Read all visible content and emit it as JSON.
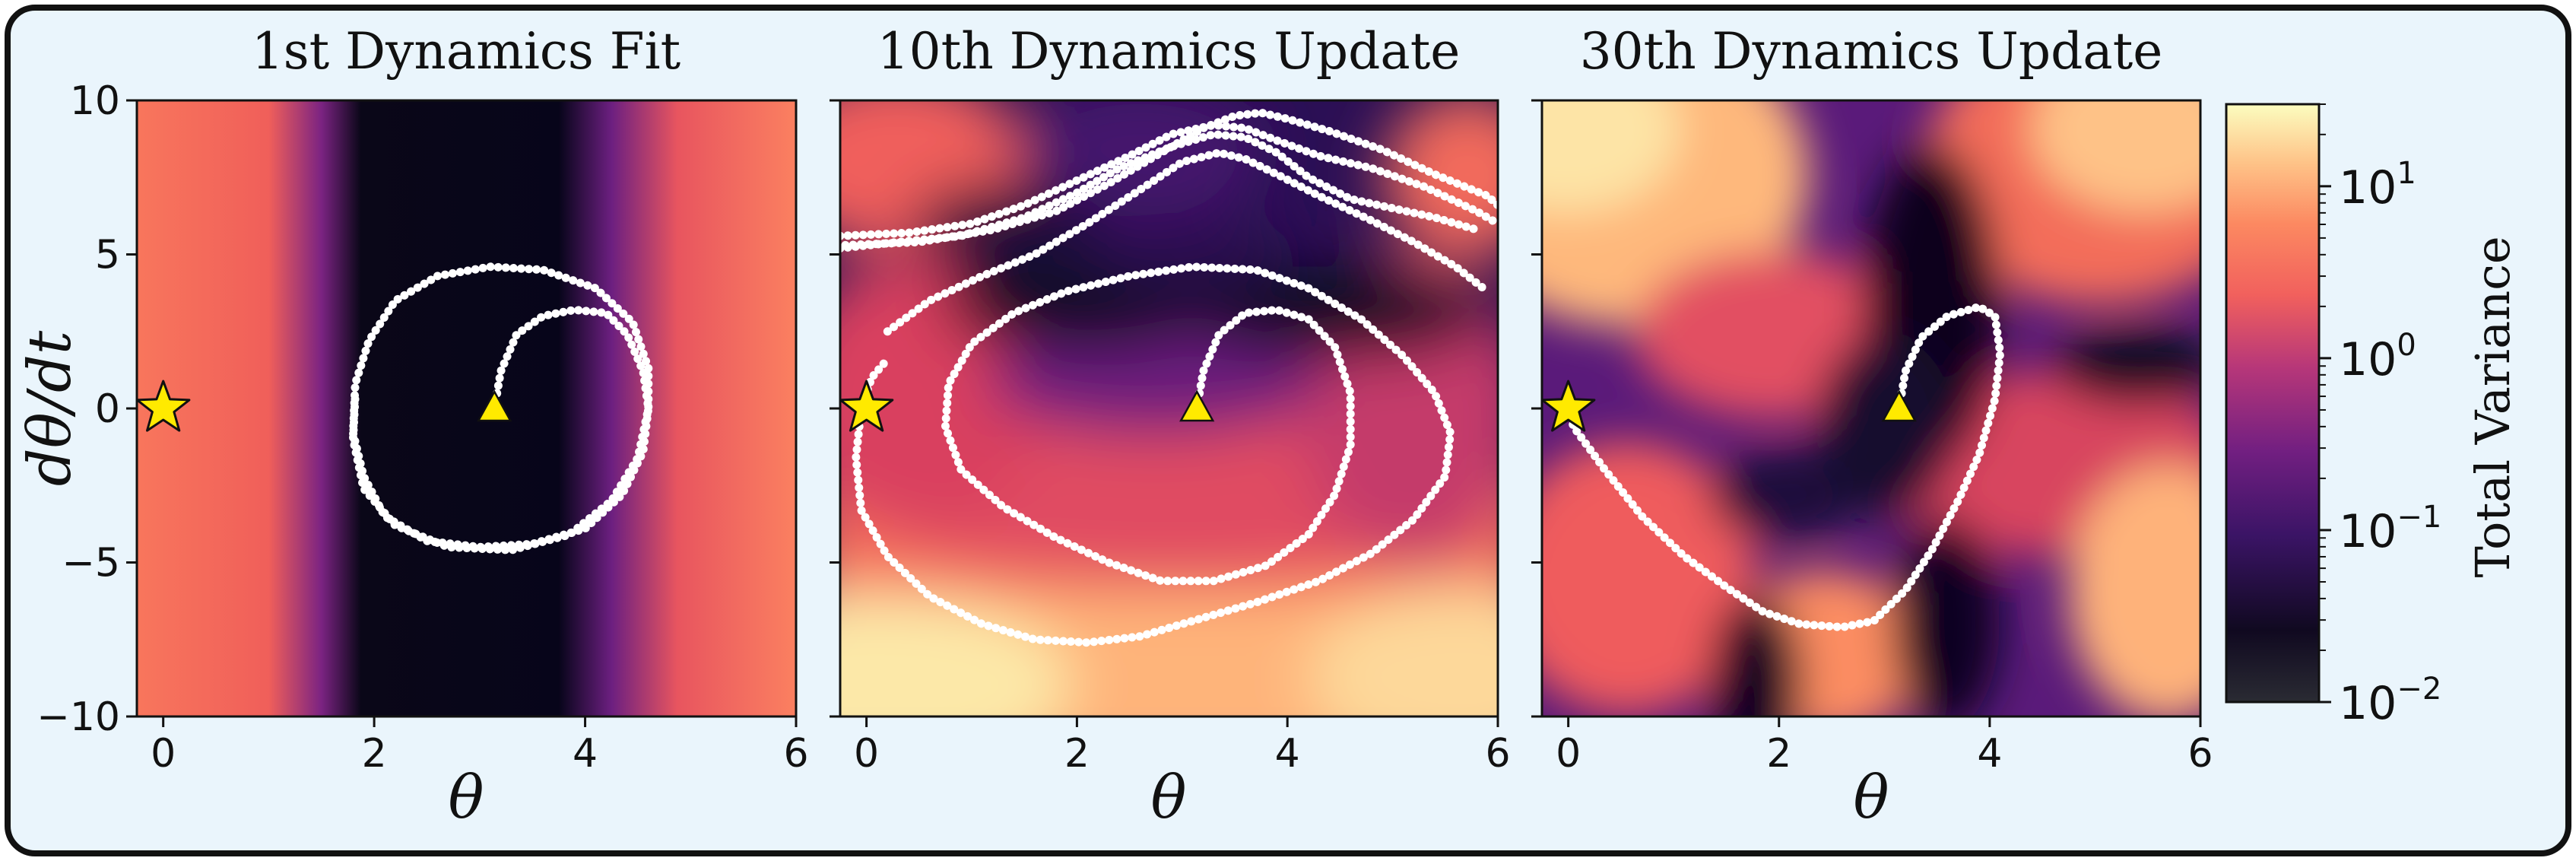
{
  "figure": {
    "background": "#eaf5fc",
    "border_color": "#111111"
  },
  "chart_data": [
    {
      "type": "heatmap",
      "title": "1st Dynamics Fit",
      "xlabel": "θ",
      "ylabel": "dθ/dt",
      "xlim": [
        -0.25,
        6.0
      ],
      "ylim": [
        -10,
        10
      ],
      "xticks": [
        0,
        2,
        4,
        6
      ],
      "xtick_labels": [
        "0",
        "2",
        "4",
        "6"
      ],
      "yticks": [
        10,
        5,
        0,
        -5,
        -10
      ],
      "ytick_labels": [
        "10",
        "5",
        "0",
        "−5",
        "−10"
      ],
      "start_marker": {
        "shape": "triangle",
        "x": 3.14,
        "y": 0
      },
      "goal_marker": {
        "shape": "star",
        "x": 0,
        "y": 0
      },
      "trajectories": [
        [
          [
            3.14,
            0
          ],
          [
            3.2,
            1.2
          ],
          [
            3.35,
            2.4
          ],
          [
            3.6,
            3.0
          ],
          [
            3.9,
            3.2
          ],
          [
            4.2,
            3.1
          ],
          [
            4.4,
            2.4
          ],
          [
            4.55,
            1.2
          ],
          [
            4.6,
            0
          ],
          [
            4.55,
            -1.4
          ],
          [
            4.35,
            -2.8
          ],
          [
            4.0,
            -3.9
          ],
          [
            3.5,
            -4.4
          ],
          [
            3.0,
            -4.5
          ],
          [
            2.5,
            -4.3
          ],
          [
            2.1,
            -3.5
          ],
          [
            1.9,
            -2.2
          ],
          [
            1.8,
            -0.8
          ],
          [
            1.82,
            0.8
          ],
          [
            1.95,
            2.2
          ],
          [
            2.2,
            3.5
          ],
          [
            2.6,
            4.3
          ],
          [
            3.1,
            4.6
          ],
          [
            3.6,
            4.5
          ],
          [
            4.1,
            3.9
          ],
          [
            4.45,
            2.8
          ],
          [
            4.6,
            1.3
          ]
        ],
        [
          [
            4.6,
            1.3
          ],
          [
            4.6,
            0
          ],
          [
            4.5,
            -1.6
          ],
          [
            4.25,
            -3.0
          ],
          [
            3.85,
            -4.1
          ],
          [
            3.3,
            -4.6
          ],
          [
            2.7,
            -4.5
          ],
          [
            2.2,
            -3.8
          ],
          [
            1.9,
            -2.6
          ],
          [
            1.8,
            -1.0
          ],
          [
            1.82,
            0.4
          ]
        ]
      ]
    },
    {
      "type": "heatmap",
      "title": "10th Dynamics Update",
      "xlabel": "θ",
      "xlim": [
        -0.25,
        6.0
      ],
      "ylim": [
        -10,
        10
      ],
      "xticks": [
        0,
        2,
        4,
        6
      ],
      "xtick_labels": [
        "0",
        "2",
        "4",
        "6"
      ],
      "start_marker": {
        "shape": "triangle",
        "x": 3.14,
        "y": 0
      },
      "goal_marker": {
        "shape": "star",
        "x": 0,
        "y": 0
      },
      "trajectories": [
        [
          [
            3.14,
            0
          ],
          [
            3.2,
            1.2
          ],
          [
            3.35,
            2.4
          ],
          [
            3.6,
            3.1
          ],
          [
            3.9,
            3.2
          ],
          [
            4.2,
            2.9
          ],
          [
            4.45,
            2.0
          ],
          [
            4.6,
            0.5
          ],
          [
            4.6,
            -1.2
          ],
          [
            4.45,
            -2.8
          ],
          [
            4.2,
            -4.1
          ],
          [
            3.8,
            -5.1
          ],
          [
            3.3,
            -5.6
          ],
          [
            2.8,
            -5.6
          ],
          [
            2.3,
            -5.0
          ],
          [
            1.8,
            -4.2
          ],
          [
            1.3,
            -3.2
          ],
          [
            0.9,
            -2.0
          ],
          [
            0.75,
            -0.6
          ],
          [
            0.78,
            0.8
          ],
          [
            1.0,
            2.1
          ],
          [
            1.4,
            3.1
          ],
          [
            1.9,
            3.8
          ],
          [
            2.5,
            4.3
          ],
          [
            3.1,
            4.6
          ],
          [
            3.7,
            4.5
          ],
          [
            4.2,
            3.9
          ],
          [
            4.7,
            2.9
          ],
          [
            5.1,
            1.7
          ],
          [
            5.4,
            0.5
          ],
          [
            5.55,
            -0.8
          ],
          [
            5.5,
            -2.2
          ],
          [
            5.2,
            -3.6
          ],
          [
            4.8,
            -4.7
          ],
          [
            4.3,
            -5.6
          ],
          [
            3.7,
            -6.3
          ],
          [
            3.1,
            -6.9
          ],
          [
            2.6,
            -7.4
          ],
          [
            2.1,
            -7.6
          ],
          [
            1.6,
            -7.5
          ],
          [
            1.1,
            -7.0
          ],
          [
            0.6,
            -6.1
          ],
          [
            0.2,
            -4.8
          ],
          [
            -0.05,
            -3.3
          ],
          [
            -0.1,
            -1.6
          ],
          [
            -0.05,
            0
          ],
          [
            0.05,
            1.0
          ],
          [
            0.2,
            1.6
          ]
        ],
        [
          [
            -0.25,
            5.2
          ],
          [
            0.3,
            5.4
          ],
          [
            0.9,
            5.6
          ],
          [
            1.5,
            6.2
          ],
          [
            2.0,
            7.0
          ],
          [
            2.4,
            7.8
          ],
          [
            2.9,
            8.5
          ],
          [
            3.3,
            8.9
          ],
          [
            3.6,
            8.8
          ],
          [
            3.9,
            8.3
          ],
          [
            4.2,
            7.5
          ],
          [
            4.6,
            6.8
          ],
          [
            5.0,
            6.5
          ],
          [
            5.4,
            6.2
          ],
          [
            5.8,
            5.8
          ]
        ],
        [
          [
            -0.25,
            5.6
          ],
          [
            0.4,
            5.7
          ],
          [
            1.0,
            6.0
          ],
          [
            1.5,
            6.6
          ],
          [
            2.0,
            7.4
          ],
          [
            2.5,
            8.2
          ],
          [
            2.9,
            8.9
          ],
          [
            3.3,
            9.2
          ],
          [
            3.6,
            9.1
          ],
          [
            3.9,
            8.7
          ],
          [
            4.3,
            8.2
          ],
          [
            4.8,
            7.8
          ],
          [
            5.3,
            7.2
          ],
          [
            5.8,
            6.4
          ],
          [
            6.0,
            6.0
          ]
        ],
        [
          [
            0.2,
            2.5
          ],
          [
            0.6,
            3.5
          ],
          [
            1.1,
            4.3
          ],
          [
            1.6,
            5.0
          ],
          [
            2.1,
            6.0
          ],
          [
            2.6,
            7.1
          ],
          [
            3.0,
            8.0
          ],
          [
            3.35,
            8.3
          ],
          [
            3.6,
            8.1
          ],
          [
            3.9,
            7.6
          ],
          [
            4.3,
            6.9
          ],
          [
            4.8,
            6.1
          ],
          [
            5.2,
            5.4
          ],
          [
            5.6,
            4.6
          ],
          [
            5.9,
            3.8
          ]
        ],
        [
          [
            -0.2,
            5.3
          ],
          [
            0.5,
            5.4
          ],
          [
            1.2,
            5.8
          ],
          [
            1.8,
            6.4
          ],
          [
            2.3,
            7.3
          ],
          [
            2.8,
            8.3
          ],
          [
            3.2,
            9.1
          ],
          [
            3.5,
            9.5
          ],
          [
            3.75,
            9.6
          ],
          [
            4.0,
            9.4
          ],
          [
            4.4,
            9.0
          ],
          [
            4.9,
            8.4
          ],
          [
            5.4,
            7.6
          ],
          [
            5.9,
            6.9
          ],
          [
            6.0,
            6.6
          ]
        ]
      ]
    },
    {
      "type": "heatmap",
      "title": "30th Dynamics Update",
      "xlabel": "θ",
      "xlim": [
        -0.25,
        6.0
      ],
      "ylim": [
        -10,
        10
      ],
      "xticks": [
        0,
        2,
        4,
        6
      ],
      "xtick_labels": [
        "0",
        "2",
        "4",
        "6"
      ],
      "start_marker": {
        "shape": "triangle",
        "x": 3.14,
        "y": 0
      },
      "goal_marker": {
        "shape": "star",
        "x": 0,
        "y": 0
      },
      "trajectories": [
        [
          [
            3.14,
            0
          ],
          [
            3.2,
            1.2
          ],
          [
            3.35,
            2.3
          ],
          [
            3.6,
            3.0
          ],
          [
            3.9,
            3.3
          ],
          [
            4.05,
            3.0
          ],
          [
            4.1,
            1.8
          ],
          [
            4.05,
            0.3
          ],
          [
            3.9,
            -1.5
          ],
          [
            3.7,
            -3.0
          ],
          [
            3.45,
            -4.6
          ],
          [
            3.2,
            -5.9
          ],
          [
            2.9,
            -6.9
          ],
          [
            2.6,
            -7.1
          ],
          [
            2.2,
            -7.0
          ],
          [
            1.85,
            -6.6
          ],
          [
            1.5,
            -5.8
          ],
          [
            1.1,
            -4.8
          ],
          [
            0.7,
            -3.5
          ],
          [
            0.35,
            -2.0
          ],
          [
            0.05,
            -0.6
          ],
          [
            0.0,
            0
          ]
        ]
      ]
    }
  ],
  "colorbar": {
    "label": "Total Variance",
    "scale": "log",
    "ticks": [
      {
        "base": "10",
        "exp": "1",
        "value": 10
      },
      {
        "base": "10",
        "exp": "0",
        "value": 1
      },
      {
        "base": "10",
        "exp": "−1",
        "value": 0.1
      },
      {
        "base": "10",
        "exp": "−2",
        "value": 0.01
      }
    ],
    "range": [
      0.01,
      30
    ],
    "colormap": [
      "#000004",
      "#2c115f",
      "#721f81",
      "#b73779",
      "#f1605d",
      "#fc8961",
      "#feb078",
      "#fcfdbf"
    ]
  }
}
